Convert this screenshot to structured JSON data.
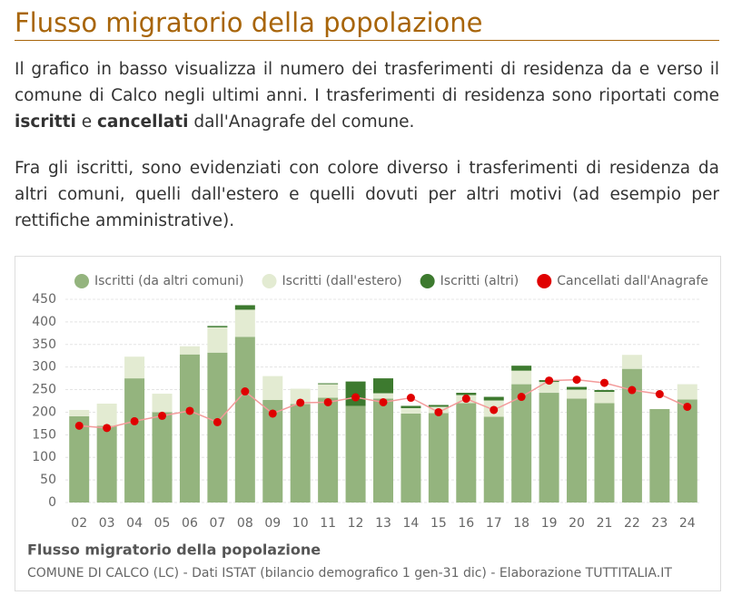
{
  "header": {
    "title": "Flusso migratorio della popolazione"
  },
  "paragraphs": [
    [
      "Il grafico in basso visualizza il numero dei trasferimenti di residenza da e verso il comune di Calco negli ultimi anni. I trasferimenti di residenza sono riportati come ",
      "iscritti",
      " e ",
      "cancellati",
      " dall'Anagrafe del comune."
    ],
    [
      "Fra gli iscritti, sono evidenziati con colore diverso i trasferimenti di residenza da altri comuni, quelli dall'estero e quelli dovuti per altri motivi (ad esempio per rettifiche amministrative)."
    ]
  ],
  "chart_data": {
    "type": "stacked-bar-line",
    "title": "Flusso migratorio della popolazione",
    "subtitle": "COMUNE DI CALCO (LC) - Dati ISTAT (bilancio demografico 1 gen-31 dic) - Elaborazione TUTTITALIA.IT",
    "categories": [
      "02",
      "03",
      "04",
      "05",
      "06",
      "07",
      "08",
      "09",
      "10",
      "11",
      "12",
      "13",
      "14",
      "15",
      "16",
      "17",
      "18",
      "19",
      "20",
      "21",
      "22",
      "23",
      "24"
    ],
    "series": [
      {
        "name": "Iscritti (da altri comuni)",
        "color": "#94b47e",
        "kind": "bar",
        "values": [
          191,
          170,
          275,
          200,
          328,
          332,
          367,
          227,
          218,
          232,
          214,
          230,
          197,
          198,
          220,
          190,
          262,
          243,
          230,
          220,
          296,
          207,
          228
        ]
      },
      {
        "name": "Iscritti (dall'estero)",
        "color": "#e3ebd2",
        "kind": "bar",
        "values": [
          14,
          49,
          48,
          41,
          18,
          56,
          60,
          53,
          34,
          30,
          0,
          12,
          12,
          14,
          18,
          36,
          30,
          24,
          20,
          25,
          31,
          0,
          34
        ]
      },
      {
        "name": "Iscritti (altri)",
        "color": "#3d7a2f",
        "kind": "bar",
        "values": [
          0,
          0,
          0,
          0,
          0,
          3,
          10,
          0,
          0,
          2,
          54,
          33,
          5,
          4,
          5,
          8,
          11,
          4,
          6,
          4,
          0,
          0,
          0
        ]
      },
      {
        "name": "Cancellati dall'Anagrafe",
        "color": "#e00000",
        "kind": "line",
        "values": [
          170,
          165,
          180,
          192,
          203,
          178,
          246,
          197,
          221,
          222,
          233,
          222,
          232,
          200,
          230,
          205,
          234,
          270,
          272,
          265,
          249,
          240,
          212
        ]
      }
    ],
    "ylim": [
      0,
      450
    ],
    "yticks": [
      0,
      50,
      100,
      150,
      200,
      250,
      300,
      350,
      400,
      450
    ],
    "grid": true,
    "legend": "top"
  }
}
